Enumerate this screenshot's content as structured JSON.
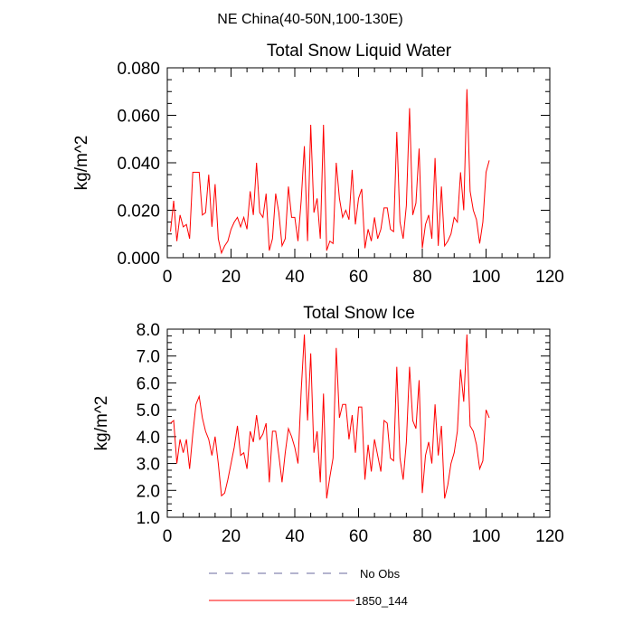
{
  "figure": {
    "title": "NE China(40-50N,100-130E)"
  },
  "legend": {
    "placement": "bottom-center",
    "entries": [
      {
        "label": "No Obs",
        "color": "#6a6a9c",
        "style": "dashed"
      },
      {
        "label": "1850_144",
        "color": "#ff0000",
        "style": "solid"
      }
    ]
  },
  "chart_data": [
    {
      "type": "line",
      "title": "Total Snow Liquid Water",
      "ylabel": "kg/m^2",
      "xlabel": "",
      "xlim": [
        0,
        120
      ],
      "ylim": [
        0.0,
        0.08
      ],
      "xticks": [
        0,
        20,
        40,
        60,
        80,
        100,
        120
      ],
      "yticks": [
        0.0,
        0.02,
        0.04,
        0.06,
        0.08
      ],
      "ytick_labels": [
        "0.000",
        "0.020",
        "0.040",
        "0.060",
        "0.080"
      ],
      "grid": false,
      "series": [
        {
          "name": "1850_144",
          "color": "#ff0000",
          "x": [
            1,
            2,
            3,
            4,
            5,
            6,
            7,
            8,
            9,
            10,
            11,
            12,
            13,
            14,
            15,
            16,
            17,
            18,
            19,
            20,
            21,
            22,
            23,
            24,
            25,
            26,
            27,
            28,
            29,
            30,
            31,
            32,
            33,
            34,
            35,
            36,
            37,
            38,
            39,
            40,
            41,
            42,
            43,
            44,
            45,
            46,
            47,
            48,
            49,
            50,
            51,
            52,
            53,
            54,
            55,
            56,
            57,
            58,
            59,
            60,
            61,
            62,
            63,
            64,
            65,
            66,
            67,
            68,
            69,
            70,
            71,
            72,
            73,
            74,
            75,
            76,
            77,
            78,
            79,
            80,
            81,
            82,
            83,
            84,
            85,
            86,
            87,
            88,
            89,
            90,
            91,
            92,
            93,
            94,
            95,
            96,
            97,
            98,
            99,
            100,
            101
          ],
          "values": [
            0.011,
            0.024,
            0.007,
            0.018,
            0.013,
            0.014,
            0.008,
            0.036,
            0.036,
            0.036,
            0.018,
            0.019,
            0.035,
            0.013,
            0.031,
            0.008,
            0.002,
            0.005,
            0.007,
            0.012,
            0.015,
            0.017,
            0.013,
            0.017,
            0.012,
            0.028,
            0.018,
            0.04,
            0.019,
            0.017,
            0.027,
            0.003,
            0.008,
            0.027,
            0.019,
            0.005,
            0.008,
            0.03,
            0.017,
            0.017,
            0.007,
            0.024,
            0.047,
            0.007,
            0.056,
            0.019,
            0.025,
            0.008,
            0.056,
            0.003,
            0.007,
            0.006,
            0.04,
            0.025,
            0.017,
            0.02,
            0.016,
            0.037,
            0.014,
            0.025,
            0.029,
            0.004,
            0.012,
            0.007,
            0.017,
            0.008,
            0.012,
            0.021,
            0.021,
            0.012,
            0.011,
            0.053,
            0.015,
            0.008,
            0.022,
            0.063,
            0.018,
            0.023,
            0.046,
            0.004,
            0.014,
            0.018,
            0.008,
            0.042,
            0.005,
            0.03,
            0.005,
            0.007,
            0.01,
            0.017,
            0.015,
            0.036,
            0.02,
            0.071,
            0.028,
            0.02,
            0.016,
            0.006,
            0.015,
            0.036,
            0.041
          ]
        }
      ]
    },
    {
      "type": "line",
      "title": "Total Snow Ice",
      "ylabel": "kg/m^2",
      "xlabel": "",
      "xlim": [
        0,
        120
      ],
      "ylim": [
        1.0,
        8.0
      ],
      "xticks": [
        0,
        20,
        40,
        60,
        80,
        100,
        120
      ],
      "yticks": [
        1.0,
        2.0,
        3.0,
        4.0,
        5.0,
        6.0,
        7.0,
        8.0
      ],
      "ytick_labels": [
        "1.0",
        "2.0",
        "3.0",
        "4.0",
        "5.0",
        "6.0",
        "7.0",
        "8.0"
      ],
      "grid": false,
      "series": [
        {
          "name": "1850_144",
          "color": "#ff0000",
          "x": [
            1,
            2,
            3,
            4,
            5,
            6,
            7,
            8,
            9,
            10,
            11,
            12,
            13,
            14,
            15,
            16,
            17,
            18,
            19,
            20,
            21,
            22,
            23,
            24,
            25,
            26,
            27,
            28,
            29,
            30,
            31,
            32,
            33,
            34,
            35,
            36,
            37,
            38,
            39,
            40,
            41,
            42,
            43,
            44,
            45,
            46,
            47,
            48,
            49,
            50,
            51,
            52,
            53,
            54,
            55,
            56,
            57,
            58,
            59,
            60,
            61,
            62,
            63,
            64,
            65,
            66,
            67,
            68,
            69,
            70,
            71,
            72,
            73,
            74,
            75,
            76,
            77,
            78,
            79,
            80,
            81,
            82,
            83,
            84,
            85,
            86,
            87,
            88,
            89,
            90,
            91,
            92,
            93,
            94,
            95,
            96,
            97,
            98,
            99,
            100,
            101
          ],
          "values": [
            4.5,
            4.6,
            3.0,
            3.9,
            3.4,
            3.9,
            2.8,
            4.1,
            5.2,
            5.5,
            4.7,
            4.2,
            3.9,
            3.3,
            4.0,
            3.0,
            1.8,
            1.9,
            2.4,
            3.0,
            3.6,
            4.4,
            3.3,
            3.4,
            2.8,
            4.2,
            3.8,
            4.8,
            3.9,
            4.1,
            4.5,
            2.3,
            4.2,
            4.2,
            3.3,
            2.3,
            3.4,
            4.3,
            4.0,
            3.6,
            3.0,
            5.7,
            7.8,
            4.6,
            7.1,
            3.4,
            4.2,
            2.3,
            5.6,
            1.7,
            2.5,
            3.2,
            7.3,
            4.7,
            5.2,
            5.2,
            3.9,
            4.8,
            3.4,
            5.1,
            5.1,
            2.4,
            3.7,
            2.7,
            3.9,
            3.3,
            2.7,
            4.6,
            4.5,
            3.2,
            3.1,
            6.6,
            3.2,
            2.4,
            3.8,
            6.6,
            4.6,
            4.3,
            6.1,
            1.9,
            3.3,
            3.8,
            3.0,
            5.2,
            3.3,
            4.4,
            1.7,
            2.2,
            3.0,
            3.4,
            4.2,
            6.5,
            5.3,
            7.8,
            4.4,
            4.2,
            3.7,
            2.8,
            3.1,
            5.0,
            4.7
          ]
        }
      ]
    }
  ]
}
